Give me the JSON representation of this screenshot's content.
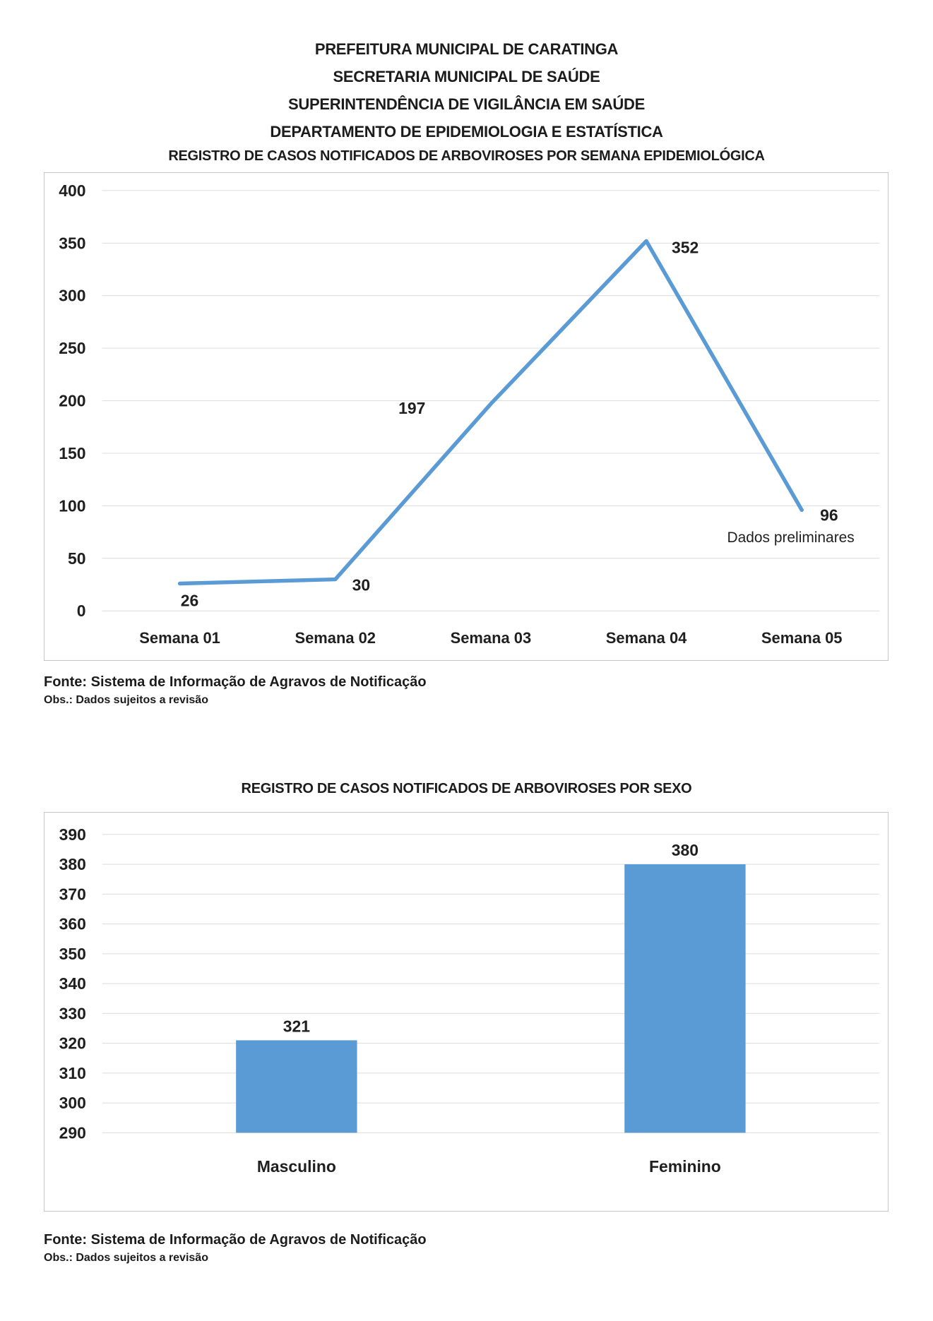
{
  "page": {
    "header_lines": [
      "PREFEITURA MUNICIPAL DE CARATINGA",
      "SECRETARIA MUNICIPAL DE SAÚDE",
      "SUPERINTENDÊNCIA DE VIGILÂNCIA EM SAÚDE",
      "DEPARTAMENTO DE EPIDEMIOLOGIA E ESTATÍSTICA"
    ]
  },
  "colors": {
    "accent_blue": "#5B9BD5",
    "gridline": "#DCDCDC",
    "frame_border": "#C6C6C6",
    "text": "#1F1F1F"
  },
  "chart_data": [
    {
      "type": "line",
      "title": "REGISTRO DE CASOS NOTIFICADOS DE ARBOVIROSES POR SEMANA EPIDEMIOLÓGICA",
      "categories": [
        "Semana 01",
        "Semana 02",
        "Semana 03",
        "Semana 04",
        "Semana 05"
      ],
      "values": [
        26,
        30,
        197,
        352,
        96
      ],
      "data_labels": [
        "26",
        "30",
        "197",
        "352",
        "96"
      ],
      "annotation": "Dados preliminares",
      "xlabel": "",
      "ylabel": "",
      "ylim": [
        0,
        400
      ],
      "ytick_step": 50,
      "grid": true,
      "legend_position": "none",
      "line_color": "#5B9BD5"
    },
    {
      "type": "bar",
      "title": "REGISTRO DE CASOS NOTIFICADOS DE ARBOVIROSES POR SEXO",
      "categories": [
        "Masculino",
        "Feminino"
      ],
      "values": [
        321,
        380
      ],
      "data_labels": [
        "321",
        "380"
      ],
      "xlabel": "",
      "ylabel": "",
      "ylim": [
        290,
        390
      ],
      "ytick_step": 10,
      "grid": true,
      "legend_position": "none",
      "bar_color": "#5B9BD5"
    }
  ],
  "footnotes": [
    {
      "fonte": "Fonte: Sistema de Informação de Agravos de Notificação",
      "obs": "Obs.: Dados sujeitos a revisão"
    },
    {
      "fonte": "Fonte: Sistema de Informação de Agravos de Notificação",
      "obs": "Obs.: Dados sujeitos a revisão"
    }
  ]
}
